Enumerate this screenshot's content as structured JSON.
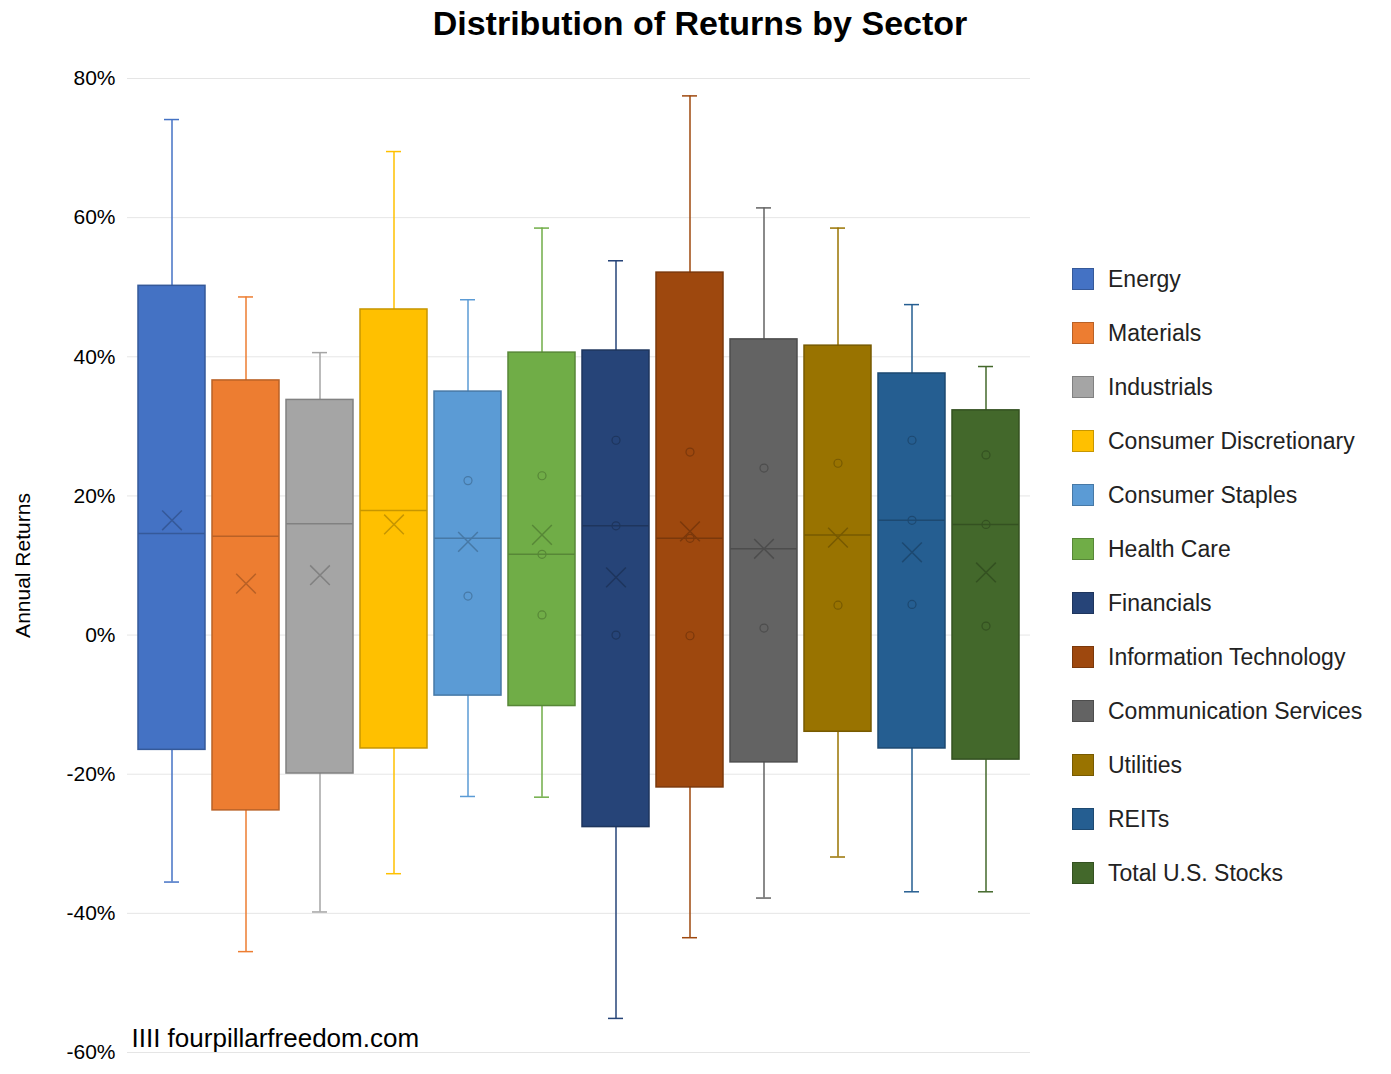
{
  "chart_data": {
    "type": "boxplot",
    "title": "Distribution of Returns by Sector",
    "y_label": "Annual Returns",
    "source": "IIII fourpillarfreedom.com",
    "ylim": [
      -60,
      80
    ],
    "yticks": [
      {
        "value": -60,
        "label": "-60%"
      },
      {
        "value": -40,
        "label": "-40%"
      },
      {
        "value": -20,
        "label": "-20%"
      },
      {
        "value": 0,
        "label": "0%"
      },
      {
        "value": 20,
        "label": "20%"
      },
      {
        "value": 40,
        "label": "40%"
      },
      {
        "value": 60,
        "label": "60%"
      },
      {
        "value": 80,
        "label": "80%"
      }
    ],
    "grid": true,
    "legend": "right",
    "tick_labels": "y",
    "series": [
      {
        "name": "Energy",
        "color": "#4472c4",
        "min": -35.5,
        "q1": -16.5,
        "median": 14.6,
        "q3": 50.2,
        "max": 74.1,
        "mean": 16.5
      },
      {
        "name": "Materials",
        "color": "#ed7d31",
        "min": -45.5,
        "q1": -25.2,
        "median": 14.2,
        "q3": 36.6,
        "max": 48.6,
        "mean": 7.4
      },
      {
        "name": "Industrials",
        "color": "#a5a5a5",
        "min": -39.8,
        "q1": -19.9,
        "median": 16.0,
        "q3": 33.8,
        "max": 40.6,
        "mean": 8.6
      },
      {
        "name": "Consumer Discretionary",
        "color": "#ffc000",
        "min": -34.3,
        "q1": -16.3,
        "median": 17.9,
        "q3": 46.8,
        "max": 69.5,
        "mean": 15.9
      },
      {
        "name": "Consumer Staples",
        "color": "#5b9bd5",
        "min": -23.2,
        "q1": -8.7,
        "median": 13.9,
        "q3": 35.0,
        "max": 48.2,
        "mean": 13.4,
        "points": [
          22.2,
          5.6
        ]
      },
      {
        "name": "Health Care",
        "color": "#70ad47",
        "min": -23.3,
        "q1": -10.2,
        "median": 11.6,
        "q3": 40.6,
        "max": 58.5,
        "mean": 14.4,
        "points": [
          22.9,
          11.6,
          2.9
        ]
      },
      {
        "name": "Financials",
        "color": "#264478",
        "min": -55.1,
        "q1": -27.6,
        "median": 15.7,
        "q3": 40.9,
        "max": 53.8,
        "mean": 8.3,
        "points": [
          28.0,
          15.7,
          0
        ]
      },
      {
        "name": "Information Technology",
        "color": "#9e480e",
        "min": -43.5,
        "q1": -21.9,
        "median": 13.9,
        "q3": 52.1,
        "max": 77.5,
        "mean": 14.9,
        "points": [
          26.3,
          13.9,
          -0.1
        ]
      },
      {
        "name": "Communication Services",
        "color": "#636363",
        "min": -37.8,
        "q1": -18.3,
        "median": 12.4,
        "q3": 42.5,
        "max": 61.4,
        "mean": 12.4,
        "points": [
          24.0,
          1.0
        ]
      },
      {
        "name": "Utilities",
        "color": "#997300",
        "min": -31.9,
        "q1": -13.9,
        "median": 14.4,
        "q3": 41.6,
        "max": 58.5,
        "mean": 14.0,
        "points": [
          24.7,
          4.3
        ]
      },
      {
        "name": "REITs",
        "color": "#255e91",
        "min": -36.9,
        "q1": -16.3,
        "median": 16.5,
        "q3": 37.6,
        "max": 47.5,
        "mean": 11.9,
        "points": [
          28.0,
          16.5,
          4.4
        ]
      },
      {
        "name": "Total U.S. Stocks",
        "color": "#43682b",
        "min": -36.9,
        "q1": -17.9,
        "median": 15.9,
        "q3": 32.3,
        "max": 38.6,
        "mean": 9.0,
        "points": [
          25.9,
          15.9,
          1.3
        ]
      }
    ]
  }
}
